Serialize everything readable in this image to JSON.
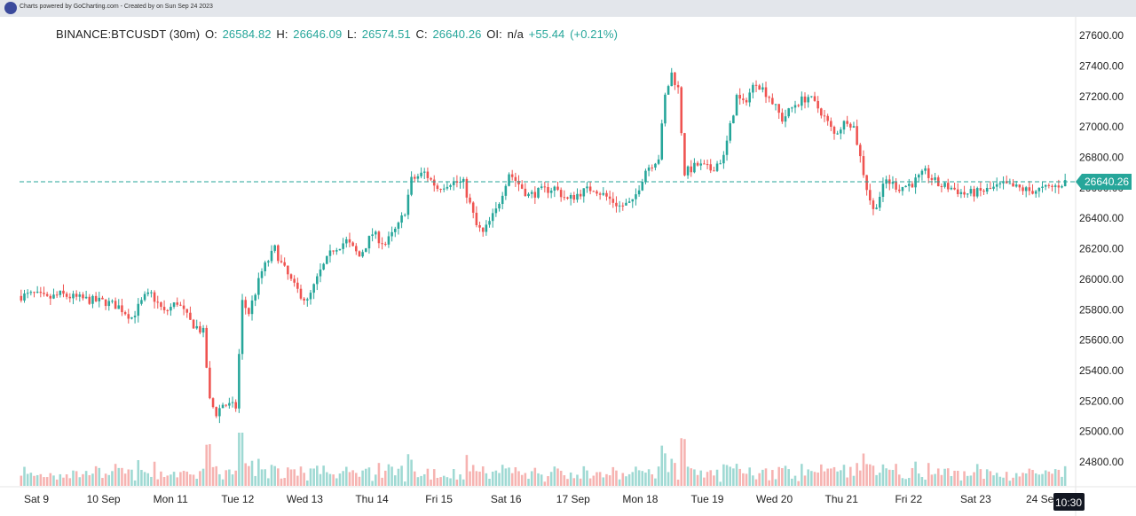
{
  "header": {
    "credit": "Charts powered by GoCharting.com - Created by  on Sun Sep 24 2023"
  },
  "legend": {
    "symbol": "BINANCE:BTCUSDT (30m)",
    "o_label": "O:",
    "o_value": "26584.82",
    "h_label": "H:",
    "h_value": "26646.09",
    "l_label": "L:",
    "l_value": "26574.51",
    "c_label": "C:",
    "c_value": "26640.26",
    "oi_label": "OI:",
    "oi_value": "n/a",
    "change": "+55.44",
    "change_pct": "(+0.21%)"
  },
  "colors": {
    "up": "#26a69a",
    "down": "#ef5350",
    "up_volume": "#9fd9d3",
    "down_volume": "#f6b3b1",
    "price_line": "#26a69a",
    "crosshair_label_bg": "#131722"
  },
  "chart_data": {
    "type": "candlestick",
    "title": "BINANCE:BTCUSDT (30m)",
    "y_axis": {
      "ticks": [
        "27600.00",
        "27400.00",
        "27200.00",
        "27000.00",
        "26800.00",
        "26600.00",
        "26400.00",
        "26200.00",
        "26000.00",
        "25800.00",
        "25600.00",
        "25400.00",
        "25200.00",
        "25000.00",
        "24800.00"
      ],
      "range": [
        24650,
        27700
      ]
    },
    "x_axis": {
      "ticks": [
        "Sat 9",
        "10 Sep",
        "Mon 11",
        "Tue 12",
        "Wed 13",
        "Thu 14",
        "Fri 15",
        "Sat 16",
        "17 Sep",
        "Mon 18",
        "Tue 19",
        "Wed 20",
        "Thu 21",
        "Fri 22",
        "Sat 23",
        "24 Sep"
      ],
      "crosshair_label": "10:30"
    },
    "last_price": 26640.26,
    "last_price_label": "26640.26",
    "close_path": [
      [
        0,
        25890
      ],
      [
        4,
        25900
      ],
      [
        8,
        25870
      ],
      [
        12,
        25900
      ],
      [
        16,
        25880
      ],
      [
        22,
        25860
      ],
      [
        26,
        25850
      ],
      [
        30,
        25820
      ],
      [
        34,
        25750
      ],
      [
        38,
        25880
      ],
      [
        40,
        25900
      ],
      [
        44,
        25780
      ],
      [
        48,
        25850
      ],
      [
        52,
        25720
      ],
      [
        56,
        25650
      ],
      [
        58,
        25200
      ],
      [
        60,
        25120
      ],
      [
        62,
        25180
      ],
      [
        66,
        25160
      ],
      [
        68,
        25850
      ],
      [
        70,
        25780
      ],
      [
        74,
        26050
      ],
      [
        78,
        26200
      ],
      [
        80,
        26100
      ],
      [
        84,
        25950
      ],
      [
        88,
        25850
      ],
      [
        92,
        26050
      ],
      [
        96,
        26200
      ],
      [
        100,
        26250
      ],
      [
        104,
        26150
      ],
      [
        108,
        26300
      ],
      [
        112,
        26230
      ],
      [
        116,
        26350
      ],
      [
        118,
        26450
      ],
      [
        120,
        26650
      ],
      [
        124,
        26700
      ],
      [
        128,
        26600
      ],
      [
        132,
        26640
      ],
      [
        136,
        26630
      ],
      [
        140,
        26350
      ],
      [
        142,
        26300
      ],
      [
        146,
        26450
      ],
      [
        150,
        26700
      ],
      [
        152,
        26650
      ],
      [
        156,
        26550
      ],
      [
        160,
        26580
      ],
      [
        164,
        26600
      ],
      [
        168,
        26520
      ],
      [
        172,
        26570
      ],
      [
        176,
        26600
      ],
      [
        180,
        26540
      ],
      [
        184,
        26480
      ],
      [
        188,
        26500
      ],
      [
        192,
        26720
      ],
      [
        196,
        26800
      ],
      [
        198,
        27200
      ],
      [
        200,
        27350
      ],
      [
        202,
        27250
      ],
      [
        204,
        26700
      ],
      [
        208,
        26750
      ],
      [
        212,
        26720
      ],
      [
        216,
        26800
      ],
      [
        220,
        27200
      ],
      [
        222,
        27150
      ],
      [
        226,
        27300
      ],
      [
        230,
        27200
      ],
      [
        234,
        27050
      ],
      [
        238,
        27150
      ],
      [
        242,
        27200
      ],
      [
        246,
        27100
      ],
      [
        250,
        26950
      ],
      [
        254,
        27050
      ],
      [
        256,
        27000
      ],
      [
        260,
        26600
      ],
      [
        262,
        26450
      ],
      [
        266,
        26650
      ],
      [
        270,
        26600
      ],
      [
        274,
        26630
      ],
      [
        278,
        26700
      ],
      [
        282,
        26620
      ],
      [
        286,
        26600
      ],
      [
        290,
        26560
      ],
      [
        294,
        26570
      ],
      [
        298,
        26590
      ],
      [
        302,
        26620
      ],
      [
        306,
        26600
      ],
      [
        310,
        26580
      ],
      [
        314,
        26590
      ],
      [
        318,
        26610
      ],
      [
        321,
        26640
      ]
    ]
  }
}
